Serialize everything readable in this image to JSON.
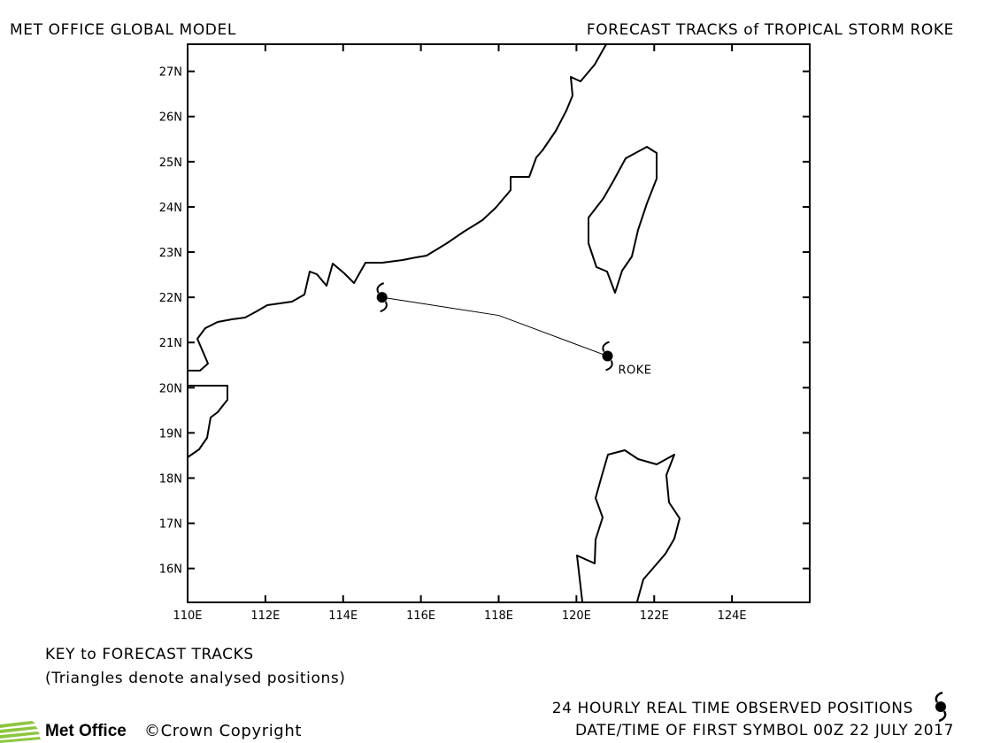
{
  "header": {
    "left_title": "MET OFFICE GLOBAL MODEL",
    "right_title": "FORECAST TRACKS of TROPICAL STORM ROKE"
  },
  "map": {
    "lon_range": [
      110,
      126
    ],
    "lat_range": [
      15.25,
      27.6
    ],
    "lon_ticks": [
      "110E",
      "112E",
      "114E",
      "116E",
      "118E",
      "120E",
      "122E",
      "124E"
    ],
    "lat_ticks": [
      "16N",
      "17N",
      "18N",
      "19N",
      "20N",
      "21N",
      "22N",
      "23N",
      "24N",
      "25N",
      "26N",
      "27N"
    ],
    "storm_label": "ROKE",
    "observed_track": [
      {
        "lon": 120.8,
        "lat": 20.7
      },
      {
        "lon": 118.0,
        "lat": 21.6
      },
      {
        "lon": 115.0,
        "lat": 22.0
      }
    ]
  },
  "key": {
    "title": "KEY to FORECAST TRACKS",
    "note": "(Triangles denote analysed positions)"
  },
  "footer": {
    "logo_text": "Met Office",
    "copyright": "©Crown Copyright",
    "observed_positions": "24 HOURLY REAL TIME OBSERVED POSITIONS",
    "date_time": "DATE/TIME OF FIRST SYMBOL 00Z 22 JULY 2017"
  },
  "colors": {
    "logo_green": "#8dc63f",
    "line": "#000000"
  }
}
